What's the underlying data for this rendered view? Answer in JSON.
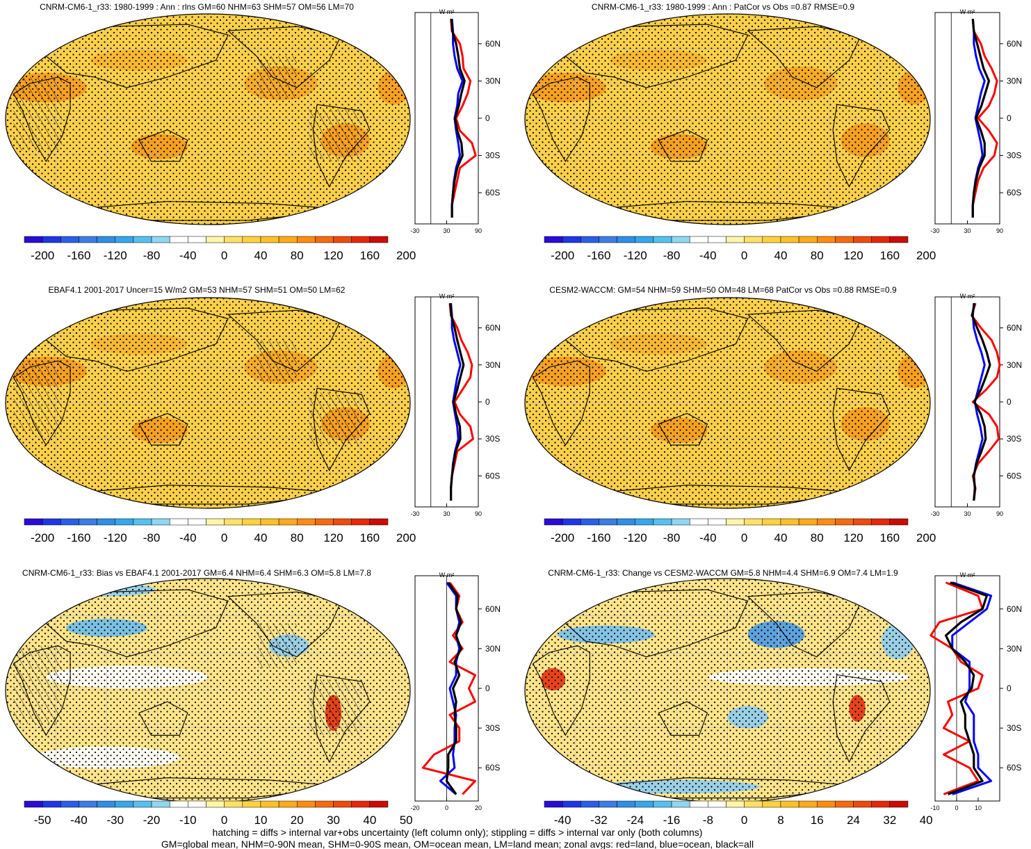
{
  "footer": {
    "line1": "hatching = diffs > internal var+obs uncertainty (left column only); stippling = diffs > internal var only (both columns)",
    "line2": "GM=global mean, NHM=0-90N mean, SHM=0-90S mean, OM=ocean mean, LM=land mean; zonal avgs: red=land, blue=ocean, black=all"
  },
  "colors": {
    "land": "#ff0000",
    "ocean": "#0000ff",
    "all": "#000000",
    "coast": "#000000",
    "abs_colorbar": [
      "#2a0cd6",
      "#1f36e6",
      "#2a5ee8",
      "#3b7ce6",
      "#2f8ee6",
      "#35a7ea",
      "#56c1f0",
      "#8fd6f2",
      "#ffffff",
      "#ffffff",
      "#fff5a8",
      "#ffe066",
      "#ffd23c",
      "#ffc126",
      "#ffaa18",
      "#ff8c10",
      "#f76a0c",
      "#ee4a0a",
      "#e62808",
      "#cc0c06"
    ],
    "bias_colorbar": [
      "#2a0cd6",
      "#1f36e6",
      "#2a5ee8",
      "#3b7ce6",
      "#2f8ee6",
      "#35a7ea",
      "#56c1f0",
      "#8fd6f2",
      "#ffffff",
      "#ffffff",
      "#fff5a8",
      "#ffe066",
      "#ffd23c",
      "#ffc126",
      "#ffaa18",
      "#ff8c10",
      "#f76a0c",
      "#ee4a0a",
      "#e62808",
      "#cc0c06"
    ]
  },
  "chart_data": [
    {
      "type": "heatmap",
      "title": "CNRM-CM6-1_r33: 1980-1999 : Ann : rlns GM=60 NHM=63 SHM=57 OM=56 LM=70",
      "colorbar_labels": [
        "-200",
        "-160",
        "-120",
        "-80",
        "-40",
        "0",
        "40",
        "80",
        "120",
        "160",
        "200"
      ],
      "hatching": true,
      "stippling": true,
      "map_fill": "#fcd04a",
      "zonal": {
        "unit": "W m²",
        "lat_ticks": [
          "60N",
          "30N",
          "0",
          "30S",
          "60S"
        ],
        "x_ticks": [
          "-30",
          "30",
          "90"
        ],
        "xlim": [
          -30,
          90
        ],
        "lat": [
          80,
          70,
          60,
          50,
          40,
          30,
          20,
          10,
          0,
          -10,
          -20,
          -30,
          -40,
          -50,
          -60,
          -70,
          -80
        ],
        "series": [
          {
            "name": "land",
            "values": [
              38,
              40,
              55,
              60,
              62,
              75,
              70,
              60,
              48,
              55,
              78,
              85,
              55,
              50,
              45,
              40,
              40
            ]
          },
          {
            "name": "ocean",
            "values": [
              40,
              42,
              42,
              45,
              50,
              60,
              52,
              50,
              45,
              48,
              52,
              55,
              48,
              44,
              42,
              40,
              40
            ]
          },
          {
            "name": "all",
            "values": [
              39,
              41,
              48,
              52,
              55,
              64,
              58,
              53,
              46,
              50,
              58,
              60,
              50,
              45,
              42,
              40,
              40
            ]
          }
        ]
      }
    },
    {
      "type": "heatmap",
      "title": "CNRM-CM6-1_r33: 1980-1999 : Ann : PatCor vs Obs =0.87 RMSE=0.9",
      "colorbar_labels": [
        "-200",
        "-160",
        "-120",
        "-80",
        "-40",
        "0",
        "40",
        "80",
        "120",
        "160",
        "200"
      ],
      "hatching": false,
      "stippling": true,
      "map_fill": "#fcd04a",
      "zonal": {
        "unit": "W m²",
        "lat_ticks": [
          "60N",
          "30N",
          "0",
          "30S",
          "60S"
        ],
        "x_ticks": [
          "-30",
          "30",
          "90"
        ],
        "xlim": [
          -30,
          90
        ],
        "lat": [
          80,
          70,
          60,
          50,
          40,
          30,
          20,
          10,
          0,
          -10,
          -20,
          -30,
          -40,
          -50,
          -60,
          -70,
          -80
        ],
        "series": [
          {
            "name": "land",
            "values": [
              40,
              42,
              55,
              62,
              75,
              85,
              80,
              70,
              50,
              70,
              85,
              80,
              60,
              50,
              45,
              40,
              40
            ]
          },
          {
            "name": "ocean",
            "values": [
              40,
              42,
              42,
              46,
              52,
              62,
              55,
              50,
              45,
              50,
              55,
              58,
              50,
              45,
              42,
              40,
              40
            ]
          },
          {
            "name": "all",
            "values": [
              40,
              42,
              48,
              54,
              60,
              70,
              63,
              56,
              46,
              55,
              62,
              62,
              52,
              46,
              42,
              40,
              40
            ]
          }
        ]
      }
    },
    {
      "type": "heatmap",
      "title": "EBAF4.1 2001-2017 Uncer=15 W/m2 GM=53 NHM=57 SHM=51 OM=50 LM=62",
      "colorbar_labels": [
        "-200",
        "-160",
        "-120",
        "-80",
        "-40",
        "0",
        "40",
        "80",
        "120",
        "160",
        "200"
      ],
      "hatching": true,
      "stippling": true,
      "map_fill": "#fcd04a",
      "zonal": {
        "unit": "W m²",
        "lat_ticks": [
          "60N",
          "30N",
          "0",
          "30S",
          "60S"
        ],
        "x_ticks": [
          "-30",
          "30",
          "90"
        ],
        "xlim": [
          -30,
          90
        ],
        "lat": [
          80,
          70,
          60,
          50,
          40,
          30,
          20,
          10,
          0,
          -10,
          -20,
          -30,
          -40,
          -50,
          -60,
          -70,
          -80
        ],
        "series": [
          {
            "name": "land",
            "values": [
              36,
              38,
              50,
              58,
              70,
              78,
              75,
              60,
              45,
              55,
              75,
              80,
              50,
              45,
              40,
              38,
              38
            ]
          },
          {
            "name": "ocean",
            "values": [
              38,
              40,
              40,
              44,
              50,
              56,
              50,
              46,
              42,
              46,
              50,
              52,
              46,
              42,
              40,
              38,
              38
            ]
          },
          {
            "name": "all",
            "values": [
              37,
              39,
              45,
              50,
              56,
              62,
              56,
              50,
              43,
              48,
              55,
              56,
              47,
              43,
              40,
              38,
              38
            ]
          }
        ]
      }
    },
    {
      "type": "heatmap",
      "title": "CESM2-WACCM: GM=54 NHM=59 SHM=50 OM=48 LM=68 PatCor vs Obs =0.88 RMSE=0.9",
      "colorbar_labels": [
        "-200",
        "-160",
        "-120",
        "-80",
        "-40",
        "0",
        "40",
        "80",
        "120",
        "160",
        "200"
      ],
      "hatching": false,
      "stippling": true,
      "map_fill": "#fcd04a",
      "zonal": {
        "unit": "W m²",
        "lat_ticks": [
          "60N",
          "30N",
          "0",
          "30S",
          "60S"
        ],
        "x_ticks": [
          "-30",
          "30",
          "90"
        ],
        "xlim": [
          -30,
          90
        ],
        "lat": [
          80,
          70,
          60,
          50,
          40,
          30,
          20,
          10,
          0,
          -10,
          -20,
          -30,
          -40,
          -50,
          -60,
          -70,
          -80
        ],
        "series": [
          {
            "name": "land",
            "values": [
              45,
              38,
              55,
              75,
              85,
              90,
              85,
              65,
              40,
              70,
              85,
              88,
              70,
              50,
              40,
              45,
              42
            ]
          },
          {
            "name": "ocean",
            "values": [
              42,
              40,
              42,
              48,
              56,
              62,
              56,
              50,
              44,
              48,
              54,
              58,
              52,
              46,
              42,
              44,
              42
            ]
          },
          {
            "name": "all",
            "values": [
              43,
              39,
              48,
              58,
              66,
              72,
              64,
              55,
              43,
              55,
              62,
              64,
              56,
              47,
              42,
              44,
              42
            ]
          }
        ]
      }
    },
    {
      "type": "heatmap",
      "title": "CNRM-CM6-1_r33: Bias vs EBAF4.1 2001-2017 GM=6.4 NHM=6.4 SHM=6.3 OM=5.8 LM=7.8",
      "colorbar_labels": [
        "-50",
        "-40",
        "-30",
        "-20",
        "-10",
        "0",
        "10",
        "20",
        "30",
        "40",
        "50"
      ],
      "hatching": true,
      "stippling": true,
      "map_fill": "#fde48a",
      "zonal": {
        "unit": "W m²",
        "lat_ticks": [
          "60N",
          "30N",
          "0",
          "30S",
          "60S"
        ],
        "x_ticks": [
          "-20",
          "0",
          "20"
        ],
        "xlim": [
          -20,
          20
        ],
        "lat": [
          80,
          70,
          60,
          50,
          40,
          30,
          20,
          10,
          0,
          -10,
          -20,
          -30,
          -40,
          -50,
          -60,
          -70,
          -80
        ],
        "series": [
          {
            "name": "land",
            "values": [
              2,
              8,
              6,
              10,
              4,
              10,
              2,
              18,
              14,
              18,
              2,
              8,
              8,
              -8,
              -15,
              18,
              10
            ]
          },
          {
            "name": "ocean",
            "values": [
              0,
              6,
              6,
              8,
              6,
              8,
              6,
              6,
              2,
              4,
              6,
              5,
              5,
              4,
              5,
              -4,
              6
            ]
          },
          {
            "name": "all",
            "values": [
              1,
              7,
              6,
              9,
              6,
              9,
              5,
              8,
              4,
              6,
              5,
              6,
              6,
              1,
              1,
              0,
              6
            ]
          }
        ]
      }
    },
    {
      "type": "heatmap",
      "title": "CNRM-CM6-1_r33: Change vs CESM2-WACCM GM=5.8 NHM=4.4 SHM=6.9 OM=7.4 LM=1.9",
      "colorbar_labels": [
        "-40",
        "-32",
        "-24",
        "-16",
        "-8",
        "0",
        "8",
        "16",
        "24",
        "32",
        "40"
      ],
      "hatching": false,
      "stippling": true,
      "map_fill": "#fde48a",
      "zonal": {
        "unit": "W m²",
        "lat_ticks": [
          "60N",
          "30N",
          "0",
          "30S",
          "60S"
        ],
        "x_ticks": [
          "-10",
          "0",
          "10"
        ],
        "xlim": [
          -10,
          20
        ],
        "lat": [
          80,
          70,
          60,
          50,
          40,
          30,
          20,
          10,
          0,
          -10,
          -20,
          -30,
          -40,
          -50,
          -60,
          -70,
          -80
        ],
        "series": [
          {
            "name": "land",
            "values": [
              -5,
              10,
              12,
              -8,
              -12,
              -2,
              2,
              12,
              10,
              -4,
              -2,
              -6,
              6,
              -6,
              6,
              10,
              -6
            ]
          },
          {
            "name": "ocean",
            "values": [
              -2,
              16,
              14,
              6,
              -2,
              -2,
              6,
              6,
              6,
              4,
              8,
              8,
              8,
              10,
              10,
              16,
              -2
            ]
          },
          {
            "name": "all",
            "values": [
              -3,
              14,
              12,
              2,
              -5,
              -2,
              4,
              8,
              7,
              2,
              4,
              4,
              6,
              8,
              8,
              12,
              -4
            ]
          }
        ]
      }
    }
  ]
}
